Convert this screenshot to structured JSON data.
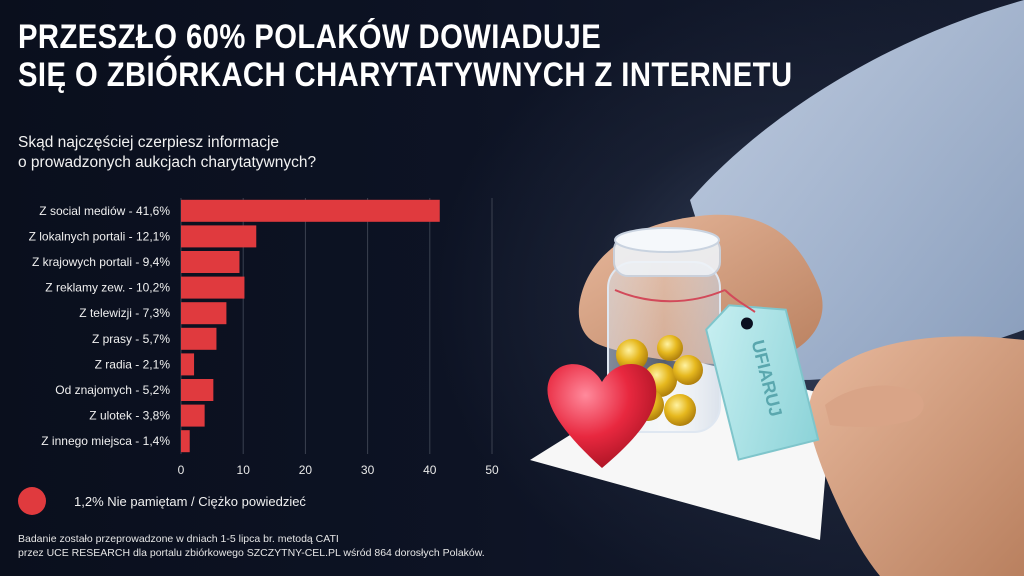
{
  "title_lines": [
    "PRZESZŁO 60% POLAKÓW DOWIADUJE",
    "SIĘ O ZBIÓRKACH CHARYTATYWNYCH Z INTERNETU"
  ],
  "question_lines": [
    "Skąd najczęściej czerpiesz informacje",
    "o prowadzonych aukcjach charytatywnych?"
  ],
  "legend_label": "1,2%  Nie pamiętam / Ciężko powiedzieć",
  "footnote_lines": [
    "Badanie zostało przeprowadzone w dniach 1-5 lipca br. metodą CATI",
    "przez UCE RESEARCH dla portalu zbiórkowego SZCZYTNY-CEL.PL wśród 864 dorosłych Polaków."
  ],
  "illustration": {
    "tag_text": "UFIARUJ"
  },
  "colors": {
    "bar": "#e03a3e",
    "background": "#0b1020",
    "grid": "#3b4150"
  },
  "chart_data": {
    "type": "bar",
    "orientation": "horizontal",
    "categories": [
      "Z social mediów - 41,6%",
      "Z lokalnych portali - 12,1%",
      "Z krajowych portali - 9,4%",
      "Z reklamy zew. - 10,2%",
      "Z telewizji - 7,3%",
      "Z prasy - 5,7%",
      "Z radia - 2,1%",
      "Od znajomych - 5,2%",
      "Z  ulotek - 3,8%",
      "Z innego miejsca - 1,4%"
    ],
    "values": [
      41.6,
      12.1,
      9.4,
      10.2,
      7.3,
      5.7,
      2.1,
      5.2,
      3.8,
      1.4
    ],
    "xlim": [
      0,
      50
    ],
    "xticks": [
      "0",
      "10",
      "20",
      "30",
      "40",
      "50"
    ],
    "grid": "vertical",
    "title": "",
    "xlabel": "",
    "ylabel": ""
  }
}
